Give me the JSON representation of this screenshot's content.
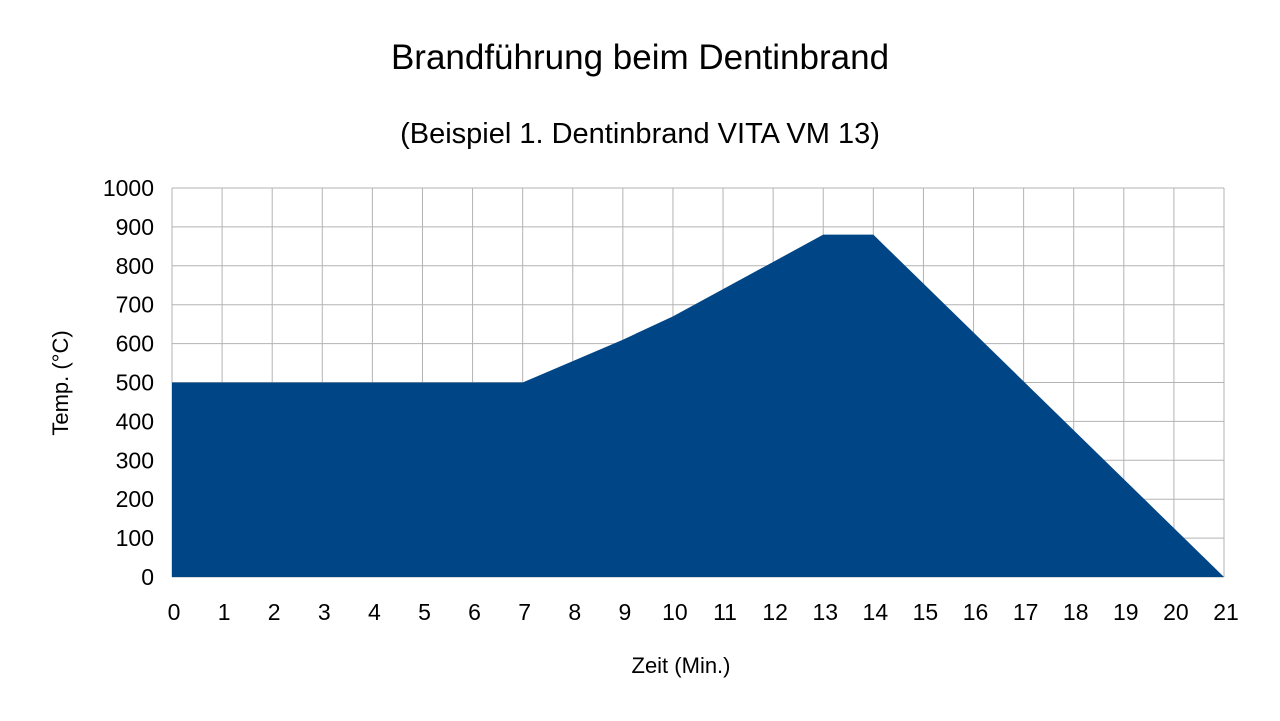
{
  "chart_data": {
    "type": "area",
    "title": "Brandführung beim Dentinbrand",
    "subtitle": "(Beispiel 1. Dentinbrand VITA VM 13)",
    "xlabel": "Zeit (Min.)",
    "ylabel": "Temp. (°C)",
    "xlim": [
      0,
      21
    ],
    "ylim": [
      0,
      1000
    ],
    "x_ticks": [
      0,
      1,
      2,
      3,
      4,
      5,
      6,
      7,
      8,
      9,
      10,
      11,
      12,
      13,
      14,
      15,
      16,
      17,
      18,
      19,
      20,
      21
    ],
    "y_ticks": [
      0,
      100,
      200,
      300,
      400,
      500,
      600,
      700,
      800,
      900,
      1000
    ],
    "grid": true,
    "legend": "none",
    "series": [
      {
        "name": "Temp.",
        "color": "#004586",
        "x": [
          0,
          7,
          9,
          10,
          13,
          14,
          21
        ],
        "y": [
          500,
          500,
          610,
          670,
          880,
          880,
          0
        ]
      }
    ]
  }
}
